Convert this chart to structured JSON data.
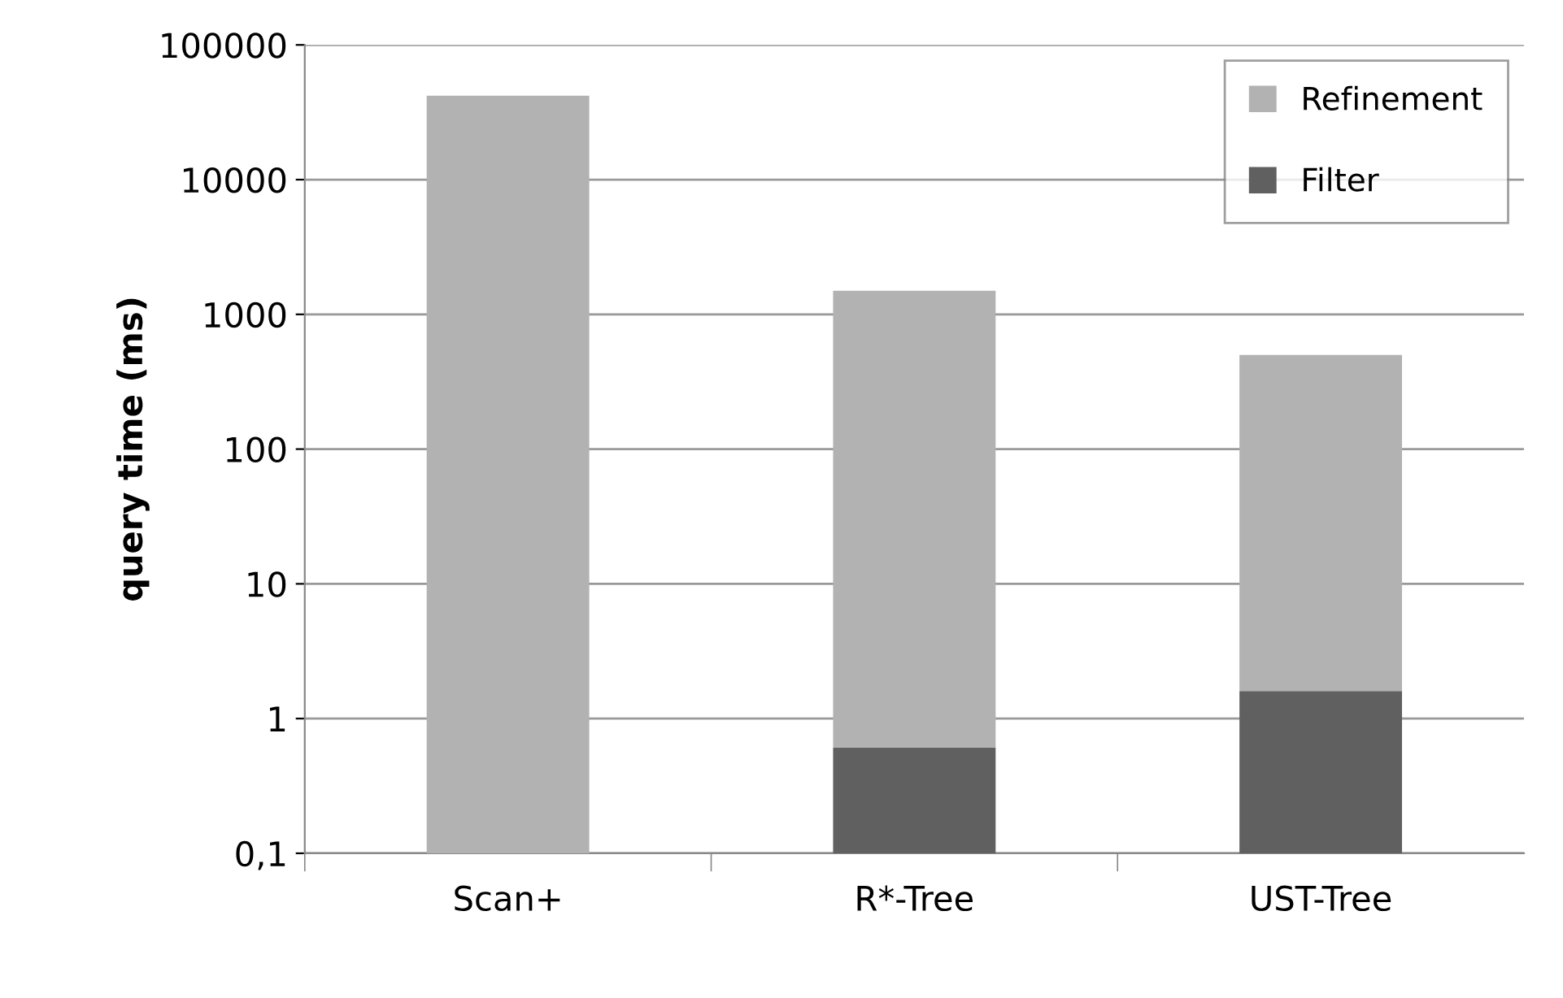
{
  "chart_data": {
    "type": "bar",
    "stacked": true,
    "log": "y",
    "ylabel": "query time (ms)",
    "categories": [
      "Scan+",
      "R*-Tree",
      "UST-Tree"
    ],
    "series": [
      {
        "name": "Filter",
        "color": "#606060",
        "values": [
          null,
          0.61,
          1.6
        ]
      },
      {
        "name": "Refinement",
        "color": "#b2b2b2",
        "values": [
          42000,
          1499,
          498
        ]
      }
    ],
    "ylim": [
      0.1,
      100000
    ],
    "yticks": [
      {
        "value": 0.1,
        "label": "0,1"
      },
      1,
      10,
      100,
      1000,
      10000,
      100000
    ],
    "grid": "y",
    "legend": "top right"
  }
}
